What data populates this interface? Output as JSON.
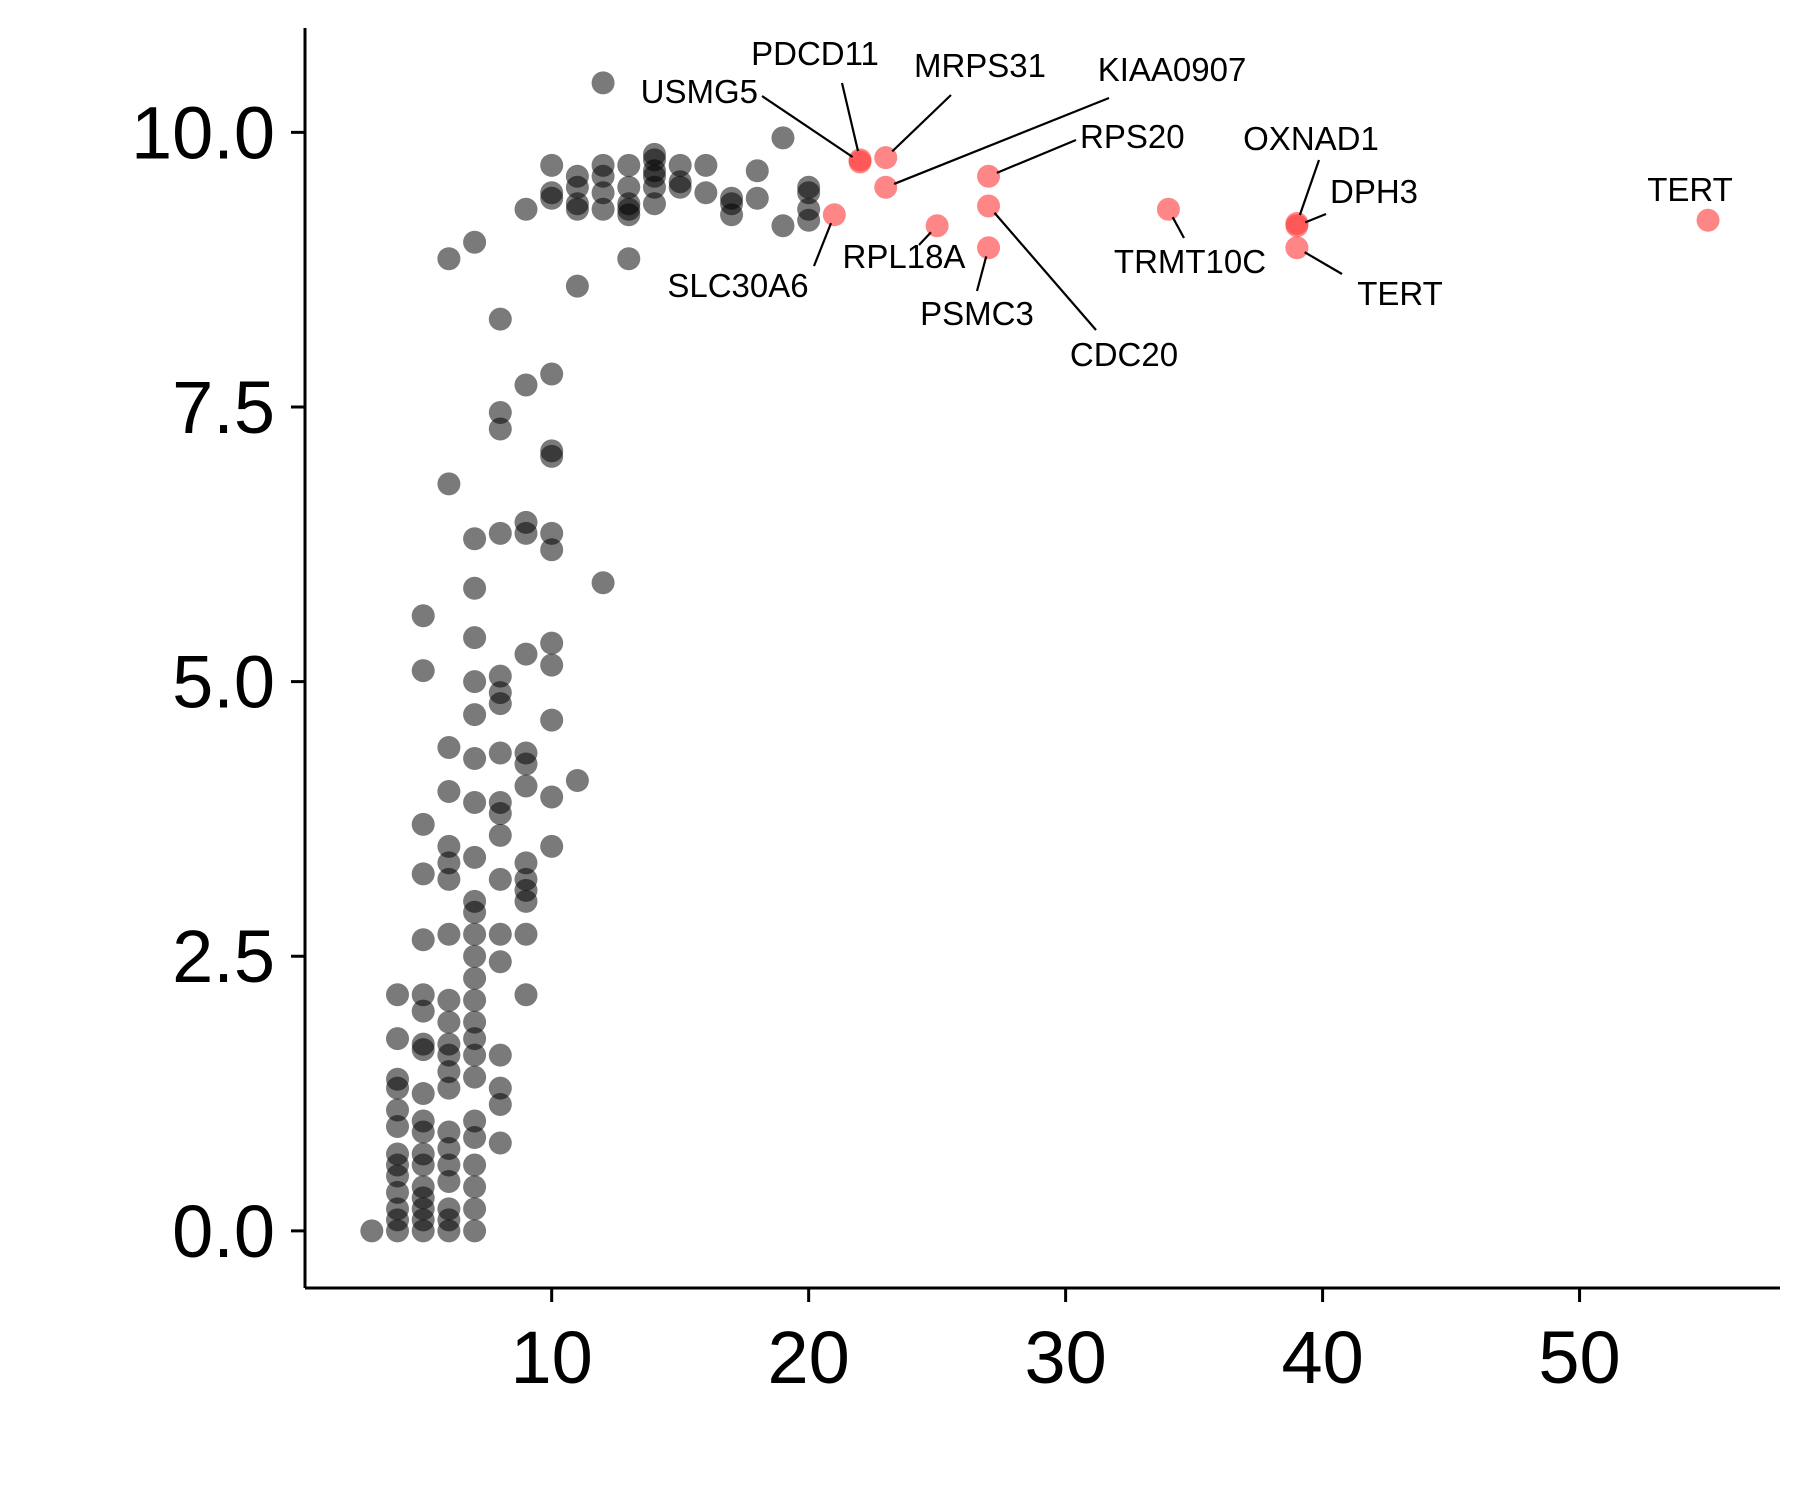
{
  "chart_data": {
    "type": "scatter",
    "title": "",
    "xlabel": "",
    "ylabel": "",
    "xlim": [
      0.4,
      57.8
    ],
    "ylim": [
      -0.52,
      10.95
    ],
    "x_ticks": [
      10,
      20,
      30,
      40,
      50
    ],
    "y_ticks": [
      0.0,
      2.5,
      5.0,
      7.5,
      10.0
    ],
    "x_tick_labels": [
      "10",
      "20",
      "30",
      "40",
      "50"
    ],
    "y_tick_labels": [
      "0.0",
      "2.5",
      "5.0",
      "7.5",
      "10.0"
    ],
    "grid": false,
    "legend": "none",
    "colors": {
      "background_points": "#000000",
      "highlight_points": "#ff3b3b",
      "axis": "#000000"
    },
    "series": [
      {
        "points": [
          [
            3,
            0.0
          ],
          [
            4,
            0.0
          ],
          [
            4,
            0.1
          ],
          [
            4,
            0.2
          ],
          [
            4,
            0.35
          ],
          [
            4,
            0.5
          ],
          [
            4,
            0.6
          ],
          [
            4,
            0.7
          ],
          [
            4,
            0.95
          ],
          [
            4,
            1.1
          ],
          [
            4,
            1.3
          ],
          [
            4,
            1.38
          ],
          [
            4,
            1.75
          ],
          [
            4,
            2.15
          ],
          [
            5,
            0.0
          ],
          [
            5,
            0.1
          ],
          [
            5,
            0.2
          ],
          [
            5,
            0.3
          ],
          [
            5,
            0.4
          ],
          [
            5,
            0.6
          ],
          [
            5,
            0.7
          ],
          [
            5,
            0.9
          ],
          [
            5,
            1.0
          ],
          [
            5,
            1.25
          ],
          [
            5,
            1.65
          ],
          [
            5,
            1.7
          ],
          [
            5,
            2.0
          ],
          [
            5,
            2.15
          ],
          [
            5,
            2.65
          ],
          [
            5,
            3.25
          ],
          [
            5,
            3.7
          ],
          [
            5,
            5.1
          ],
          [
            5,
            5.6
          ],
          [
            6,
            0.0
          ],
          [
            6,
            0.1
          ],
          [
            6,
            0.2
          ],
          [
            6,
            0.45
          ],
          [
            6,
            0.6
          ],
          [
            6,
            0.75
          ],
          [
            6,
            0.9
          ],
          [
            6,
            1.3
          ],
          [
            6,
            1.45
          ],
          [
            6,
            1.6
          ],
          [
            6,
            1.7
          ],
          [
            6,
            1.9
          ],
          [
            6,
            2.1
          ],
          [
            6,
            2.7
          ],
          [
            6,
            3.2
          ],
          [
            6,
            3.35
          ],
          [
            6,
            3.5
          ],
          [
            6,
            4.0
          ],
          [
            6,
            4.4
          ],
          [
            6,
            6.8
          ],
          [
            6,
            8.85
          ],
          [
            7,
            0.0
          ],
          [
            7,
            0.2
          ],
          [
            7,
            0.4
          ],
          [
            7,
            0.6
          ],
          [
            7,
            0.85
          ],
          [
            7,
            1.0
          ],
          [
            7,
            1.4
          ],
          [
            7,
            1.6
          ],
          [
            7,
            1.75
          ],
          [
            7,
            1.9
          ],
          [
            7,
            2.1
          ],
          [
            7,
            2.3
          ],
          [
            7,
            2.5
          ],
          [
            7,
            2.7
          ],
          [
            7,
            2.9
          ],
          [
            7,
            3.0
          ],
          [
            7,
            3.4
          ],
          [
            7,
            3.9
          ],
          [
            7,
            4.3
          ],
          [
            7,
            4.7
          ],
          [
            7,
            5.0
          ],
          [
            7,
            5.4
          ],
          [
            7,
            5.85
          ],
          [
            7,
            6.3
          ],
          [
            7,
            9.0
          ],
          [
            8,
            0.8
          ],
          [
            8,
            1.15
          ],
          [
            8,
            1.3
          ],
          [
            8,
            1.6
          ],
          [
            8,
            2.45
          ],
          [
            8,
            2.7
          ],
          [
            8,
            3.2
          ],
          [
            8,
            3.6
          ],
          [
            8,
            3.8
          ],
          [
            8,
            3.9
          ],
          [
            8,
            4.35
          ],
          [
            8,
            4.8
          ],
          [
            8,
            4.9
          ],
          [
            8,
            5.05
          ],
          [
            8,
            6.35
          ],
          [
            8,
            7.3
          ],
          [
            8,
            7.45
          ],
          [
            8,
            8.3
          ],
          [
            9,
            2.15
          ],
          [
            9,
            2.7
          ],
          [
            9,
            3.0
          ],
          [
            9,
            3.1
          ],
          [
            9,
            3.2
          ],
          [
            9,
            3.35
          ],
          [
            9,
            4.05
          ],
          [
            9,
            4.25
          ],
          [
            9,
            4.35
          ],
          [
            9,
            5.25
          ],
          [
            9,
            6.35
          ],
          [
            9,
            6.45
          ],
          [
            9,
            7.7
          ],
          [
            9,
            9.3
          ],
          [
            10,
            3.5
          ],
          [
            10,
            3.95
          ],
          [
            10,
            4.65
          ],
          [
            10,
            5.15
          ],
          [
            10,
            5.35
          ],
          [
            10,
            6.2
          ],
          [
            10,
            6.35
          ],
          [
            10,
            7.05
          ],
          [
            10,
            7.1
          ],
          [
            10,
            7.8
          ],
          [
            10,
            9.4
          ],
          [
            10,
            9.45
          ],
          [
            10,
            9.7
          ],
          [
            11,
            4.1
          ],
          [
            11,
            8.6
          ],
          [
            11,
            9.3
          ],
          [
            11,
            9.35
          ],
          [
            11,
            9.5
          ],
          [
            11,
            9.6
          ],
          [
            12,
            5.9
          ],
          [
            12,
            9.3
          ],
          [
            12,
            9.45
          ],
          [
            12,
            9.6
          ],
          [
            12,
            9.7
          ],
          [
            12,
            10.45
          ],
          [
            13,
            8.85
          ],
          [
            13,
            9.25
          ],
          [
            13,
            9.3
          ],
          [
            13,
            9.35
          ],
          [
            13,
            9.5
          ],
          [
            13,
            9.7
          ],
          [
            14,
            9.35
          ],
          [
            14,
            9.5
          ],
          [
            14,
            9.6
          ],
          [
            14,
            9.65
          ],
          [
            14,
            9.75
          ],
          [
            14,
            9.8
          ],
          [
            15,
            9.5
          ],
          [
            15,
            9.55
          ],
          [
            15,
            9.7
          ],
          [
            16,
            9.45
          ],
          [
            16,
            9.7
          ],
          [
            17,
            9.25
          ],
          [
            17,
            9.35
          ],
          [
            17,
            9.4
          ],
          [
            18,
            9.4
          ],
          [
            18,
            9.65
          ],
          [
            19,
            9.15
          ],
          [
            19,
            9.95
          ],
          [
            20,
            9.2
          ],
          [
            20,
            9.3
          ],
          [
            20,
            9.45
          ],
          [
            20,
            9.5
          ]
        ]
      },
      {
        "points": [
          {
            "x": 22,
            "y": 9.75,
            "label": "PDCD11"
          },
          {
            "x": 22,
            "y": 9.73,
            "label": "USMG5"
          },
          {
            "x": 23,
            "y": 9.77,
            "label": "MRPS31"
          },
          {
            "x": 23,
            "y": 9.5,
            "label": "KIAA0907"
          },
          {
            "x": 27,
            "y": 9.6,
            "label": "RPS20"
          },
          {
            "x": 21,
            "y": 9.25,
            "label": "SLC30A6"
          },
          {
            "x": 25,
            "y": 9.15,
            "label": "RPL18A"
          },
          {
            "x": 27,
            "y": 8.95,
            "label": "PSMC3"
          },
          {
            "x": 27,
            "y": 9.33,
            "label": "CDC20"
          },
          {
            "x": 34,
            "y": 9.3,
            "label": "TRMT10C"
          },
          {
            "x": 39,
            "y": 9.17,
            "label": "OXNAD1"
          },
          {
            "x": 39,
            "y": 9.15,
            "label": "DPH3"
          },
          {
            "x": 39,
            "y": 8.95,
            "label": "TERT"
          },
          {
            "x": 55,
            "y": 9.2,
            "label": "TERT"
          }
        ]
      }
    ]
  }
}
